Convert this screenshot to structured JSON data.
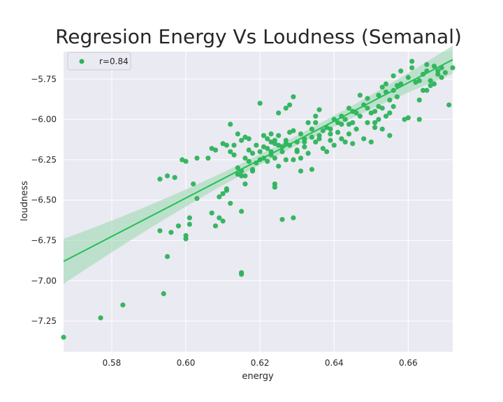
{
  "chart_data": {
    "type": "scatter",
    "title": "Regresion Energy Vs Loudness (Semanal)",
    "xlabel": "energy",
    "ylabel": "loudness",
    "xlim": [
      0.567,
      0.672
    ],
    "ylim": [
      -7.44,
      -5.58
    ],
    "xticks": [
      0.58,
      0.6,
      0.62,
      0.64,
      0.66
    ],
    "xtick_labels": [
      "0.58",
      "0.60",
      "0.62",
      "0.64",
      "0.66"
    ],
    "yticks": [
      -5.75,
      -6.0,
      -6.25,
      -6.5,
      -6.75,
      -7.0,
      -7.25
    ],
    "ytick_labels": [
      "−5.75",
      "−6.00",
      "−6.25",
      "−6.50",
      "−6.75",
      "−7.00",
      "−7.25"
    ],
    "grid": true,
    "legend": {
      "position": "top-left",
      "label": "r=0.84"
    },
    "colors": {
      "points": "#2db35a",
      "line": "#22bf55",
      "band": "#9fd9b2",
      "plot_bg": "#eaeaf2",
      "grid": "#ffffff"
    },
    "regression": {
      "x": [
        0.567,
        0.672
      ],
      "y": [
        -6.88,
        -5.63
      ]
    },
    "points": [
      [
        0.567,
        -7.35
      ],
      [
        0.577,
        -7.23
      ],
      [
        0.583,
        -7.15
      ],
      [
        0.594,
        -7.08
      ],
      [
        0.595,
        -6.85
      ],
      [
        0.593,
        -6.69
      ],
      [
        0.596,
        -6.7
      ],
      [
        0.598,
        -6.66
      ],
      [
        0.6,
        -6.74
      ],
      [
        0.6,
        -6.72
      ],
      [
        0.601,
        -6.65
      ],
      [
        0.601,
        -6.61
      ],
      [
        0.593,
        -6.37
      ],
      [
        0.595,
        -6.35
      ],
      [
        0.597,
        -6.36
      ],
      [
        0.599,
        -6.25
      ],
      [
        0.6,
        -6.26
      ],
      [
        0.602,
        -6.4
      ],
      [
        0.603,
        -6.49
      ],
      [
        0.603,
        -6.24
      ],
      [
        0.606,
        -6.24
      ],
      [
        0.607,
        -6.18
      ],
      [
        0.608,
        -6.19
      ],
      [
        0.607,
        -6.58
      ],
      [
        0.608,
        -6.66
      ],
      [
        0.609,
        -6.61
      ],
      [
        0.609,
        -6.48
      ],
      [
        0.61,
        -6.63
      ],
      [
        0.61,
        -6.46
      ],
      [
        0.611,
        -6.44
      ],
      [
        0.611,
        -6.43
      ],
      [
        0.612,
        -6.52
      ],
      [
        0.612,
        -6.03
      ],
      [
        0.61,
        -6.15
      ],
      [
        0.611,
        -6.16
      ],
      [
        0.612,
        -6.2
      ],
      [
        0.613,
        -6.16
      ],
      [
        0.613,
        -6.22
      ],
      [
        0.614,
        -6.3
      ],
      [
        0.614,
        -6.34
      ],
      [
        0.615,
        -6.32
      ],
      [
        0.615,
        -6.35
      ],
      [
        0.616,
        -6.35
      ],
      [
        0.616,
        -6.4
      ],
      [
        0.615,
        -6.57
      ],
      [
        0.615,
        -6.95
      ],
      [
        0.615,
        -6.96
      ],
      [
        0.614,
        -6.09
      ],
      [
        0.615,
        -6.13
      ],
      [
        0.616,
        -6.11
      ],
      [
        0.617,
        -6.12
      ],
      [
        0.616,
        -6.24
      ],
      [
        0.617,
        -6.19
      ],
      [
        0.617,
        -6.26
      ],
      [
        0.618,
        -6.21
      ],
      [
        0.618,
        -6.32
      ],
      [
        0.618,
        -6.31
      ],
      [
        0.619,
        -6.27
      ],
      [
        0.619,
        -6.16
      ],
      [
        0.62,
        -6.2
      ],
      [
        0.62,
        -6.25
      ],
      [
        0.62,
        -5.9
      ],
      [
        0.621,
        -6.17
      ],
      [
        0.621,
        -6.1
      ],
      [
        0.622,
        -6.12
      ],
      [
        0.622,
        -6.18
      ],
      [
        0.622,
        -6.26
      ],
      [
        0.623,
        -6.09
      ],
      [
        0.623,
        -6.14
      ],
      [
        0.623,
        -6.22
      ],
      [
        0.624,
        -6.13
      ],
      [
        0.624,
        -6.15
      ],
      [
        0.624,
        -6.24
      ],
      [
        0.624,
        -6.4
      ],
      [
        0.624,
        -6.42
      ],
      [
        0.625,
        -5.96
      ],
      [
        0.625,
        -6.29
      ],
      [
        0.625,
        -6.1
      ],
      [
        0.626,
        -6.17
      ],
      [
        0.626,
        -6.62
      ],
      [
        0.626,
        -6.2
      ],
      [
        0.627,
        -5.93
      ],
      [
        0.627,
        -6.25
      ],
      [
        0.627,
        -6.15
      ],
      [
        0.628,
        -5.91
      ],
      [
        0.628,
        -6.08
      ],
      [
        0.628,
        -6.16
      ],
      [
        0.629,
        -6.25
      ],
      [
        0.629,
        -5.86
      ],
      [
        0.629,
        -6.61
      ],
      [
        0.629,
        -6.07
      ],
      [
        0.63,
        -6.14
      ],
      [
        0.63,
        -6.2
      ],
      [
        0.631,
        -6.09
      ],
      [
        0.631,
        -6.24
      ],
      [
        0.631,
        -6.32
      ],
      [
        0.632,
        -6.17
      ],
      [
        0.632,
        -6.12
      ],
      [
        0.633,
        -6.02
      ],
      [
        0.633,
        -6.21
      ],
      [
        0.634,
        -6.06
      ],
      [
        0.634,
        -6.11
      ],
      [
        0.634,
        -6.31
      ],
      [
        0.635,
        -5.98
      ],
      [
        0.635,
        -6.14
      ],
      [
        0.635,
        -6.02
      ],
      [
        0.636,
        -6.1
      ],
      [
        0.636,
        -5.94
      ],
      [
        0.637,
        -6.18
      ],
      [
        0.637,
        -6.07
      ],
      [
        0.638,
        -6.2
      ],
      [
        0.638,
        -6.05
      ],
      [
        0.639,
        -6.09
      ],
      [
        0.639,
        -6.13
      ],
      [
        0.64,
        -6.0
      ],
      [
        0.64,
        -6.16
      ],
      [
        0.641,
        -6.02
      ],
      [
        0.641,
        -6.08
      ],
      [
        0.642,
        -5.98
      ],
      [
        0.642,
        -6.03
      ],
      [
        0.643,
        -6.0
      ],
      [
        0.643,
        -6.14
      ],
      [
        0.644,
        -6.03
      ],
      [
        0.644,
        -5.93
      ],
      [
        0.645,
        -5.95
      ],
      [
        0.645,
        -6.02
      ],
      [
        0.645,
        -6.15
      ],
      [
        0.646,
        -6.06
      ],
      [
        0.646,
        -5.96
      ],
      [
        0.647,
        -5.98
      ],
      [
        0.647,
        -5.85
      ],
      [
        0.648,
        -5.91
      ],
      [
        0.648,
        -6.12
      ],
      [
        0.649,
        -5.93
      ],
      [
        0.649,
        -6.02
      ],
      [
        0.649,
        -5.87
      ],
      [
        0.65,
        -5.96
      ],
      [
        0.65,
        -6.14
      ],
      [
        0.651,
        -5.95
      ],
      [
        0.651,
        -6.05
      ],
      [
        0.651,
        -6.02
      ],
      [
        0.652,
        -5.92
      ],
      [
        0.652,
        -5.85
      ],
      [
        0.652,
        -6.0
      ],
      [
        0.653,
        -5.8
      ],
      [
        0.653,
        -5.93
      ],
      [
        0.653,
        -6.06
      ],
      [
        0.654,
        -5.83
      ],
      [
        0.654,
        -5.78
      ],
      [
        0.654,
        -5.98
      ],
      [
        0.655,
        -5.88
      ],
      [
        0.655,
        -5.96
      ],
      [
        0.655,
        -6.1
      ],
      [
        0.656,
        -5.73
      ],
      [
        0.656,
        -5.82
      ],
      [
        0.656,
        -5.92
      ],
      [
        0.657,
        -5.79
      ],
      [
        0.657,
        -5.86
      ],
      [
        0.658,
        -5.7
      ],
      [
        0.658,
        -5.78
      ],
      [
        0.659,
        -6.0
      ],
      [
        0.66,
        -5.99
      ],
      [
        0.66,
        -5.74
      ],
      [
        0.661,
        -5.68
      ],
      [
        0.661,
        -5.64
      ],
      [
        0.662,
        -5.77
      ],
      [
        0.663,
        -5.76
      ],
      [
        0.663,
        -5.88
      ],
      [
        0.663,
        -6.0
      ],
      [
        0.664,
        -5.72
      ],
      [
        0.664,
        -5.82
      ],
      [
        0.665,
        -5.7
      ],
      [
        0.665,
        -5.66
      ],
      [
        0.665,
        -5.82
      ],
      [
        0.666,
        -5.79
      ],
      [
        0.666,
        -5.76
      ],
      [
        0.667,
        -5.67
      ],
      [
        0.667,
        -5.78
      ],
      [
        0.668,
        -5.7
      ],
      [
        0.668,
        -5.72
      ],
      [
        0.669,
        -5.68
      ],
      [
        0.669,
        -5.74
      ],
      [
        0.67,
        -5.71
      ],
      [
        0.671,
        -5.91
      ],
      [
        0.672,
        -5.68
      ],
      [
        0.621,
        -6.24
      ],
      [
        0.623,
        -6.2
      ],
      [
        0.625,
        -6.16
      ],
      [
        0.627,
        -6.13
      ],
      [
        0.63,
        -6.19
      ],
      [
        0.632,
        -6.14
      ],
      [
        0.636,
        -6.12
      ],
      [
        0.639,
        -6.06
      ],
      [
        0.642,
        -6.12
      ],
      [
        0.644,
        -6.09
      ]
    ]
  }
}
